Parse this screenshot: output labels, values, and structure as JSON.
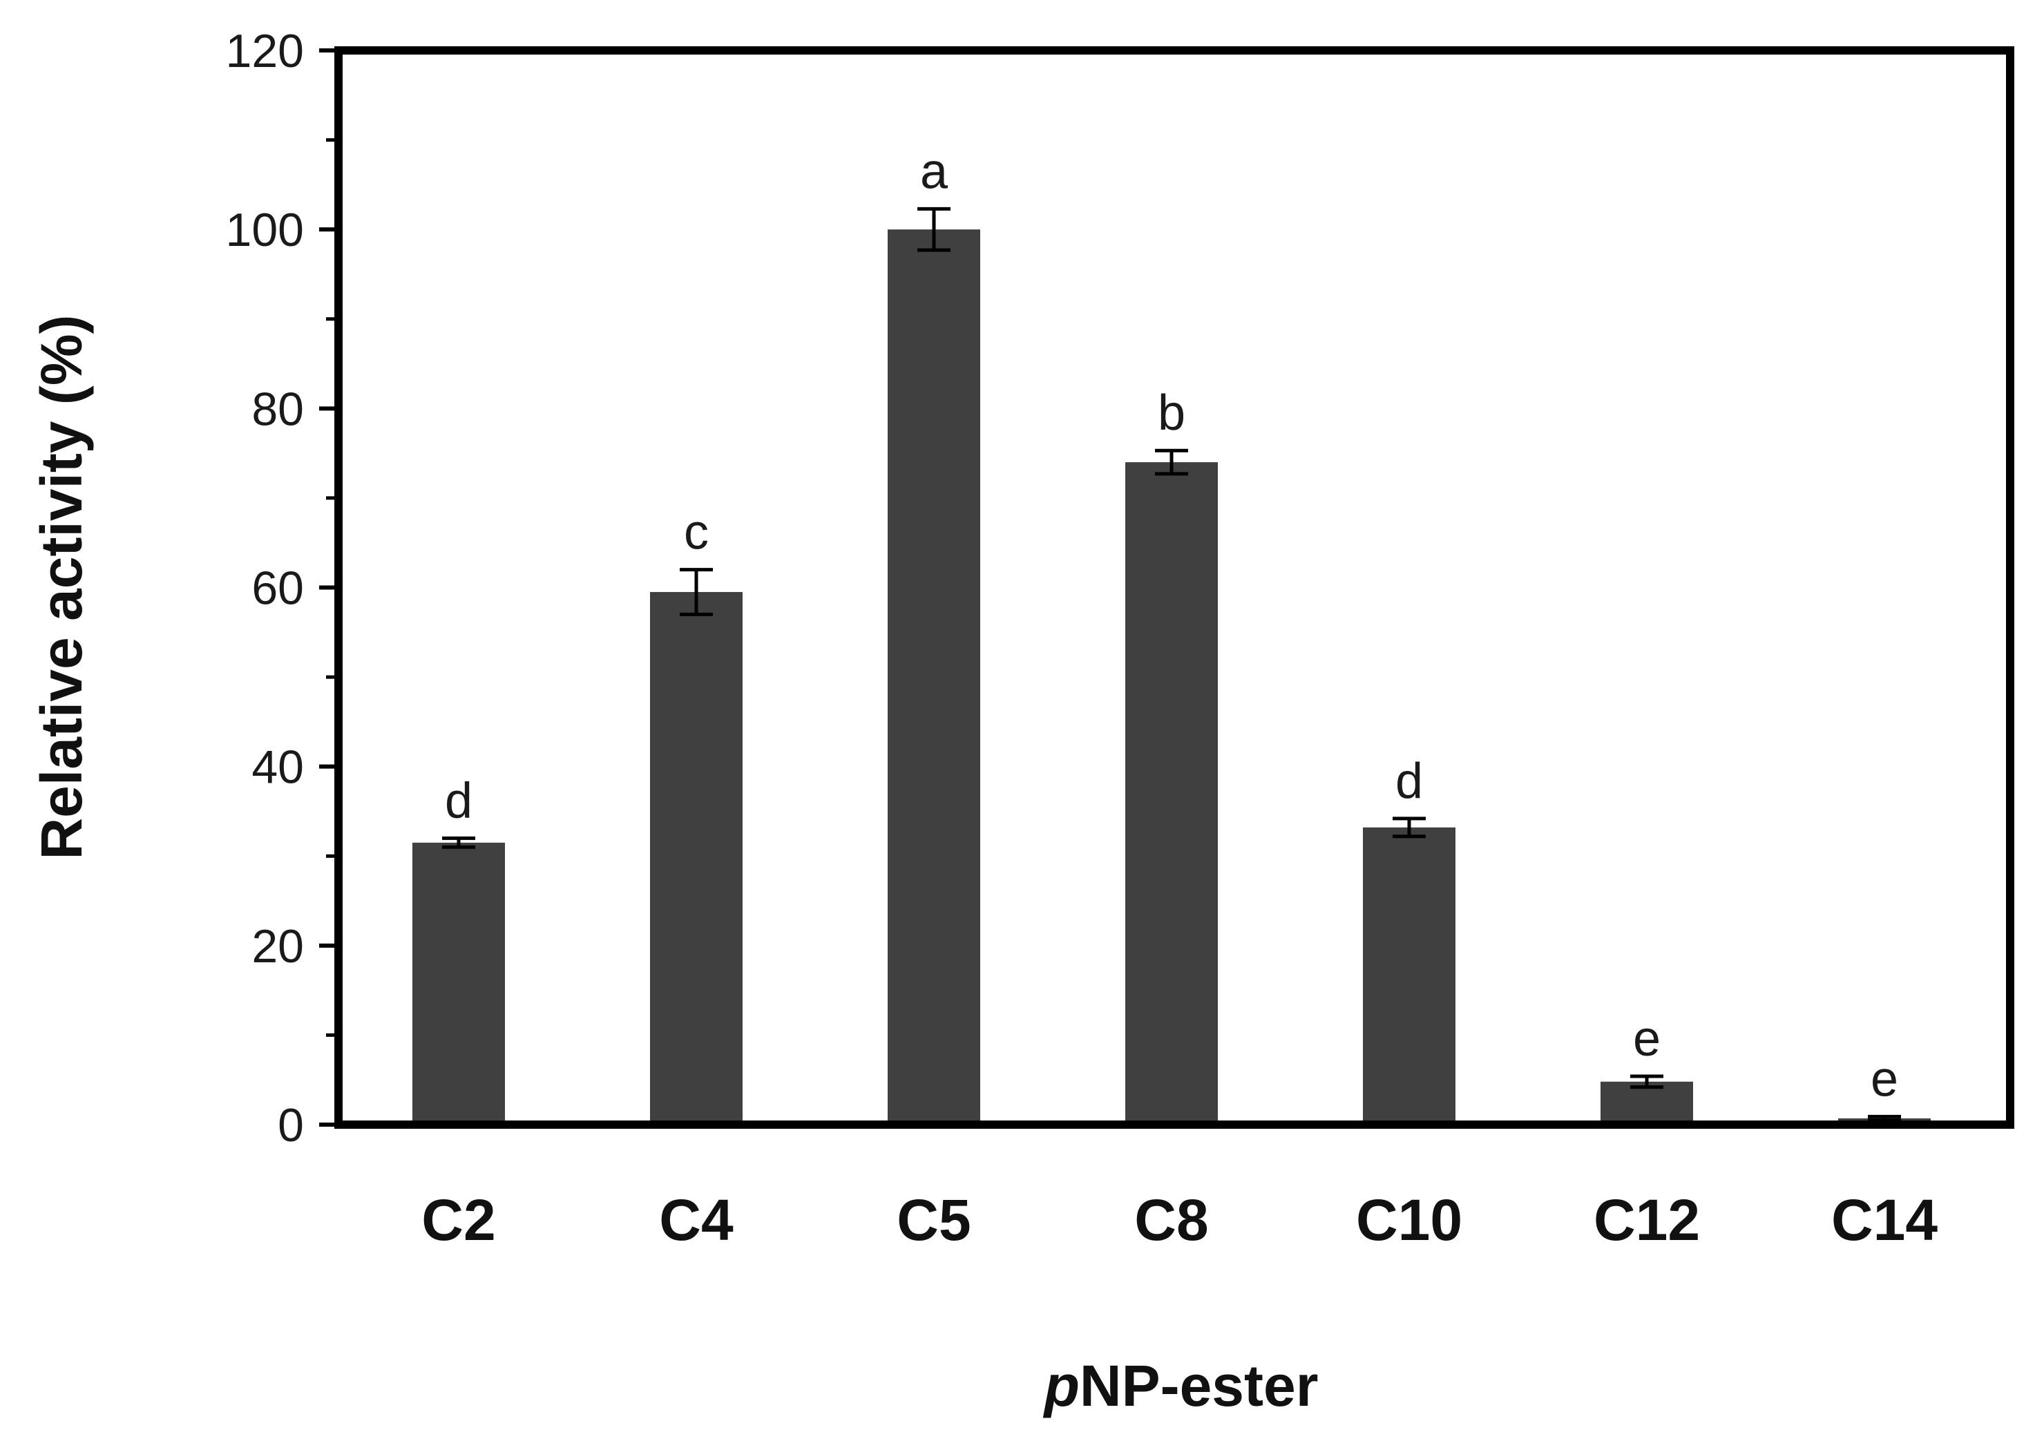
{
  "chart_data": {
    "type": "bar",
    "categories": [
      "C2",
      "C4",
      "C5",
      "C8",
      "C10",
      "C12",
      "C14"
    ],
    "values": [
      31.5,
      59.5,
      100,
      74,
      33.2,
      4.8,
      0.7
    ],
    "errors": [
      0.5,
      2.5,
      2.3,
      1.3,
      1.0,
      0.6,
      0.2
    ],
    "significance_letters": [
      "d",
      "c",
      "a",
      "b",
      "d",
      "e",
      "e"
    ],
    "ylabel": "Relative activity (%)",
    "xlabel_italic": "p",
    "xlabel_rest": "NP-ester",
    "ylim": [
      0,
      120
    ],
    "yticks": [
      "0",
      "20",
      "40",
      "60",
      "80",
      "100",
      "120"
    ],
    "bar_color": "#404040",
    "grid": false
  }
}
